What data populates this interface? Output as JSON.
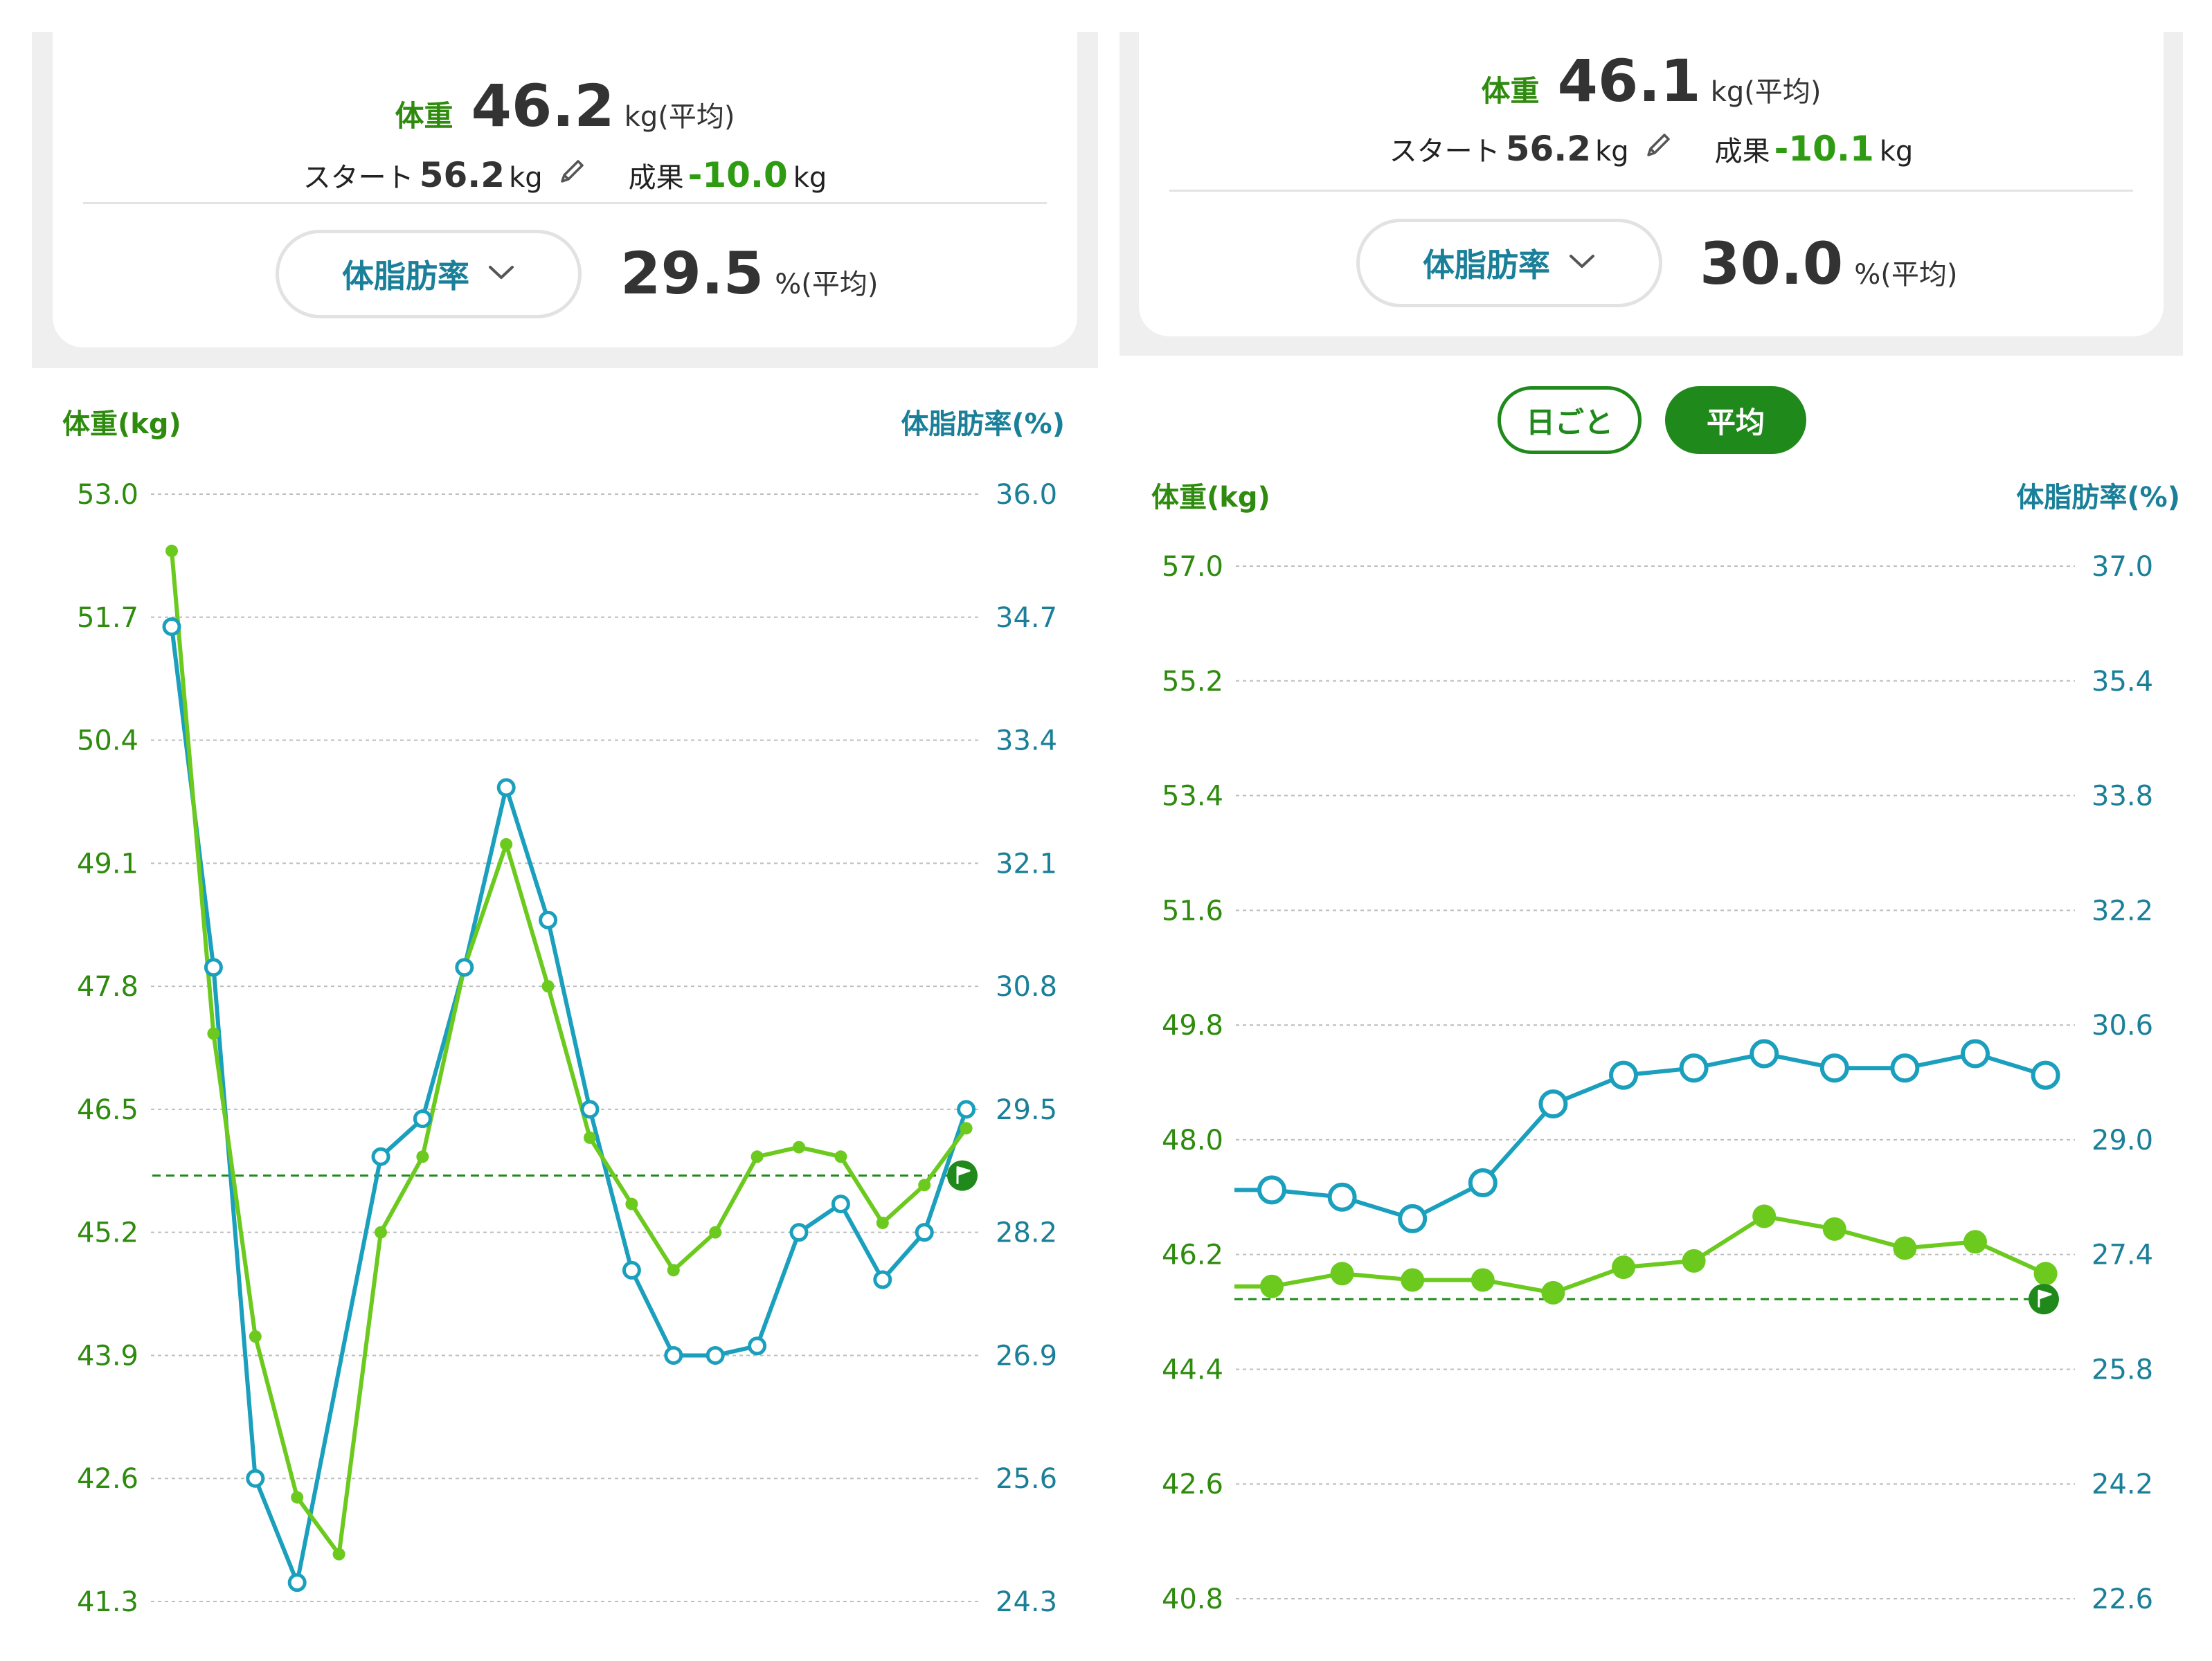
{
  "colors": {
    "weight": "#6cc91e",
    "weight_label": "#2e8b0e",
    "body_fat": "#1a9fbd",
    "body_fat_label": "#1a7f98",
    "goal_line": "#1f8a1b",
    "grid": "#bdbdbd"
  },
  "icons": {
    "edit": "pencil-icon",
    "dropdown": "chevron-down-icon",
    "goal": "flag-icon"
  },
  "left": {
    "summary": {
      "weight_label": "体重",
      "weight_value": "46.2",
      "weight_unit": "kg(平均)",
      "start_label": "スタート",
      "start_value": "56.2",
      "start_unit": "kg",
      "result_label": "成果",
      "result_value": "-10.0",
      "result_unit": "kg",
      "metric_select": "体脂肪率",
      "metric_value": "29.5",
      "metric_unit": "%(平均)"
    },
    "left_axis_title": "体重(kg)",
    "right_axis_title": "体脂肪率(%)"
  },
  "right": {
    "summary": {
      "weight_label": "体重",
      "weight_value": "46.1",
      "weight_unit": "kg(平均)",
      "start_label": "スタート",
      "start_value": "56.2",
      "start_unit": "kg",
      "result_label": "成果",
      "result_value": "-10.1",
      "result_unit": "kg",
      "metric_select": "体脂肪率",
      "metric_value": "30.0",
      "metric_unit": "%(平均)"
    },
    "toggle": {
      "daily": "日ごと",
      "average": "平均",
      "selected": "平均"
    },
    "left_axis_title": "体重(kg)",
    "right_axis_title": "体脂肪率(%)"
  },
  "chart_data": [
    {
      "type": "line",
      "grid": true,
      "y_ticks": [
        "53.0",
        "51.7",
        "50.4",
        "49.1",
        "47.8",
        "46.5",
        "45.2",
        "43.9",
        "42.6",
        "41.3"
      ],
      "y2_ticks": [
        "36.0",
        "34.7",
        "33.4",
        "32.1",
        "30.8",
        "29.5",
        "28.2",
        "26.9",
        "25.6",
        "24.3"
      ],
      "ylim": [
        41.3,
        53.0
      ],
      "y2lim": [
        24.3,
        36.0
      ],
      "goal_weight": 45.8,
      "series": [
        {
          "name": "体重(kg)",
          "axis": "left",
          "marker": "filled",
          "values": [
            52.4,
            47.3,
            44.1,
            42.4,
            41.8,
            45.2,
            46.0,
            48.0,
            49.3,
            47.8,
            46.2,
            45.5,
            44.8,
            45.2,
            46.0,
            46.1,
            46.0,
            45.3,
            45.7,
            46.3
          ]
        },
        {
          "name": "体脂肪率(%)",
          "axis": "right",
          "marker": "hollow",
          "values": [
            34.6,
            31.0,
            25.6,
            24.5,
            null,
            29.0,
            29.4,
            31.0,
            32.9,
            31.5,
            29.5,
            27.8,
            26.9,
            26.9,
            27.0,
            28.2,
            28.5,
            27.7,
            28.2,
            29.5
          ]
        }
      ]
    },
    {
      "type": "line",
      "grid": true,
      "y_ticks": [
        "57.0",
        "55.2",
        "53.4",
        "51.6",
        "49.8",
        "48.0",
        "46.2",
        "44.4",
        "42.6",
        "40.8"
      ],
      "y2_ticks": [
        "37.0",
        "35.4",
        "33.8",
        "32.2",
        "30.6",
        "29.0",
        "27.4",
        "25.8",
        "24.2",
        "22.6"
      ],
      "ylim": [
        40.8,
        57.0
      ],
      "y2lim": [
        22.6,
        37.0
      ],
      "goal_weight": 45.5,
      "series": [
        {
          "name": "体重(kg)",
          "axis": "left",
          "marker": "filled",
          "values": [
            45.7,
            45.9,
            45.8,
            45.8,
            45.6,
            46.0,
            46.1,
            46.8,
            46.6,
            46.3,
            46.4,
            45.9
          ]
        },
        {
          "name": "体脂肪率(%)",
          "axis": "right",
          "marker": "hollow",
          "values": [
            28.3,
            28.2,
            27.9,
            28.4,
            29.5,
            29.9,
            30.0,
            30.2,
            30.0,
            30.0,
            30.2,
            29.9
          ]
        }
      ]
    }
  ]
}
